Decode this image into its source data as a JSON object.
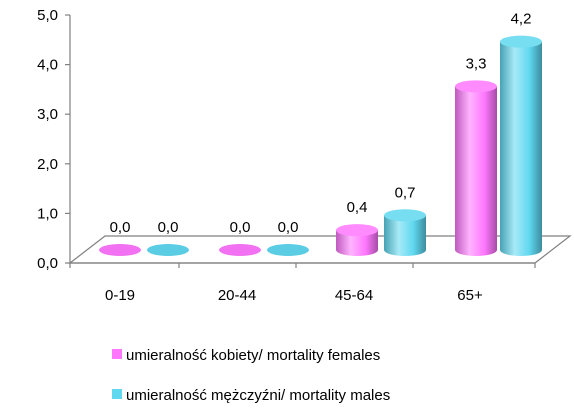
{
  "colors": {
    "series_females": "#ff77ff",
    "series_males": "#5fd8f0",
    "axis": "#808080",
    "text": "#000000"
  },
  "chart_data": {
    "type": "bar",
    "style": "3d-cylinder",
    "categories": [
      "0-19",
      "20-44",
      "45-64",
      "65+"
    ],
    "series": [
      {
        "name": "umieralność kobiety/ mortality females",
        "values": [
          0.0,
          0.0,
          0.4,
          3.3
        ],
        "value_labels": [
          "0,0",
          "0,0",
          "0,4",
          "3,3"
        ],
        "color": "#ff77ff"
      },
      {
        "name": "umieralność  mężczyźni/ mortality males",
        "values": [
          0.0,
          0.0,
          0.7,
          4.2
        ],
        "value_labels": [
          "0,0",
          "0,0",
          "0,7",
          "4,2"
        ],
        "color": "#5fd8f0"
      }
    ],
    "yticks": [
      0,
      1,
      2,
      3,
      4,
      5
    ],
    "ytick_labels": [
      "0,0",
      "1,0",
      "2,0",
      "3,0",
      "4,0",
      "5,0"
    ],
    "ylim": [
      0,
      5
    ],
    "grid": false,
    "legend_position": "bottom",
    "title": "",
    "xlabel": "",
    "ylabel": ""
  }
}
